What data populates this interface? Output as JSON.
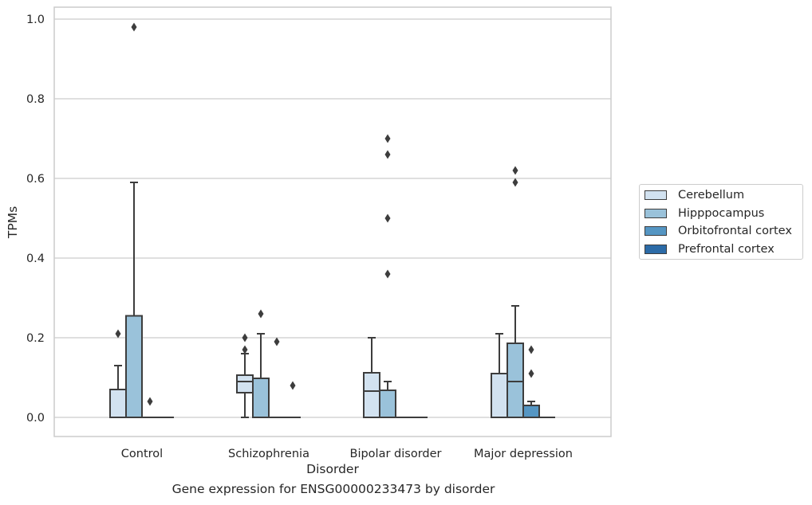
{
  "chart_data": {
    "type": "box",
    "xlabel": "Disorder",
    "ylabel": "TPMs",
    "ylim": [
      -0.047,
      1.03
    ],
    "grid": true,
    "legend_position": "right",
    "categories": [
      "Control",
      "Schizophrenia",
      "Bipolar disorder",
      "Major depression"
    ],
    "y_ticks": [
      "0.0",
      "0.2",
      "0.4",
      "0.6",
      "0.8",
      "1.0"
    ],
    "series": [
      {
        "name": "Cerebellum",
        "color": "#d2e2f0",
        "boxes": [
          {
            "min": 0.0,
            "q1": 0.0,
            "median": 0.0,
            "q3": 0.07,
            "max": 0.13,
            "outliers": [
              0.21
            ]
          },
          {
            "min": 0.0,
            "q1": 0.062,
            "median": 0.09,
            "q3": 0.106,
            "max": 0.16,
            "outliers": [
              0.17,
              0.2
            ]
          },
          {
            "min": 0.0,
            "q1": 0.0,
            "median": 0.066,
            "q3": 0.112,
            "max": 0.2,
            "outliers": []
          },
          {
            "min": 0.0,
            "q1": 0.0,
            "median": 0.0,
            "q3": 0.11,
            "max": 0.21,
            "outliers": []
          }
        ]
      },
      {
        "name": "Hipppocampus",
        "color": "#9ac2da",
        "boxes": [
          {
            "min": 0.0,
            "q1": 0.0,
            "median": 0.0,
            "q3": 0.255,
            "max": 0.59,
            "outliers": [
              0.98
            ]
          },
          {
            "min": 0.0,
            "q1": 0.0,
            "median": 0.0,
            "q3": 0.098,
            "max": 0.21,
            "outliers": [
              0.26
            ]
          },
          {
            "min": 0.0,
            "q1": 0.0,
            "median": 0.0,
            "q3": 0.068,
            "max": 0.09,
            "outliers": [
              0.36,
              0.5,
              0.7,
              0.66
            ]
          },
          {
            "min": 0.0,
            "q1": 0.0,
            "median": 0.09,
            "q3": 0.186,
            "max": 0.28,
            "outliers": [
              0.59,
              0.62
            ]
          }
        ]
      },
      {
        "name": "Orbitofrontal cortex",
        "color": "#5596c3",
        "boxes": [
          {
            "min": 0.0,
            "q1": 0.0,
            "median": 0.0,
            "q3": 0.0,
            "max": 0.0,
            "outliers": [
              0.04
            ]
          },
          {
            "min": 0.0,
            "q1": 0.0,
            "median": 0.0,
            "q3": 0.0,
            "max": 0.0,
            "outliers": [
              0.19
            ]
          },
          {
            "min": 0.0,
            "q1": 0.0,
            "median": 0.0,
            "q3": 0.0,
            "max": 0.0,
            "outliers": []
          },
          {
            "min": 0.0,
            "q1": 0.0,
            "median": 0.0,
            "q3": 0.03,
            "max": 0.04,
            "outliers": [
              0.11,
              0.17
            ]
          }
        ]
      },
      {
        "name": "Prefrontal cortex",
        "color": "#2c6ba7",
        "boxes": [
          {
            "min": 0.0,
            "q1": 0.0,
            "median": 0.0,
            "q3": 0.0,
            "max": 0.0,
            "outliers": []
          },
          {
            "min": 0.0,
            "q1": 0.0,
            "median": 0.0,
            "q3": 0.0,
            "max": 0.0,
            "outliers": [
              0.08
            ]
          },
          {
            "min": 0.0,
            "q1": 0.0,
            "median": 0.0,
            "q3": 0.0,
            "max": 0.0,
            "outliers": []
          },
          {
            "min": 0.0,
            "q1": 0.0,
            "median": 0.0,
            "q3": 0.0,
            "max": 0.0,
            "outliers": []
          }
        ]
      }
    ],
    "caption": "Gene expression for ENSG00000233473 by disorder"
  }
}
